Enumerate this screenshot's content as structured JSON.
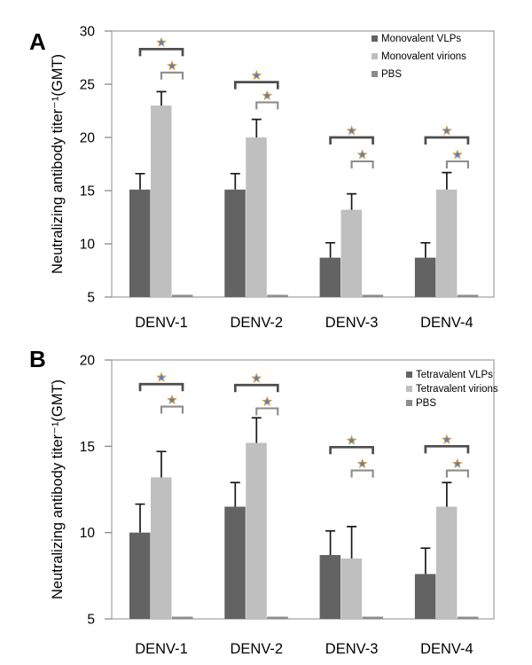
{
  "figure": {
    "panels": [
      {
        "label": "A",
        "ylabel": "Neutralizing antibody titer⁻¹(GMT)"
      },
      {
        "label": "B",
        "ylabel": "Neutralizing antibody titer⁻¹(GMT)"
      }
    ]
  },
  "chart_data": [
    {
      "type": "bar",
      "panel_label": "A",
      "title": "",
      "categories": [
        "DENV-1",
        "DENV-2",
        "DENV-3",
        "DENV-4"
      ],
      "series": [
        {
          "name": "Monovalent VLPs",
          "color": "#636363",
          "values": [
            15.1,
            15.1,
            8.7,
            8.7
          ],
          "errors_up": [
            1.5,
            1.5,
            1.4,
            1.4
          ]
        },
        {
          "name": "Monovalent virions",
          "color": "#bfbfbf",
          "values": [
            23.0,
            20.0,
            13.2,
            15.1
          ],
          "errors_up": [
            1.3,
            1.7,
            1.5,
            1.6
          ]
        },
        {
          "name": "PBS",
          "color": "#8c8c8c",
          "values": [
            5,
            5,
            5,
            5
          ],
          "errors_up": [
            0,
            0,
            0,
            0
          ]
        }
      ],
      "ylabel": "Neutralizing antibody titer⁻¹(GMT)",
      "xlabel": "",
      "ylim": [
        5,
        30
      ],
      "yticks": [
        5,
        10,
        15,
        20,
        25,
        30
      ],
      "grid": false,
      "legend_position": "top-right",
      "significance_brackets": [
        {
          "category": 0,
          "from_series": 0,
          "to_series": 2,
          "y": 28.3,
          "label": "*"
        },
        {
          "category": 0,
          "from_series": 1,
          "to_series": 2,
          "y": 26.1,
          "label": "*"
        },
        {
          "category": 1,
          "from_series": 0,
          "to_series": 2,
          "y": 25.2,
          "label": "*"
        },
        {
          "category": 1,
          "from_series": 1,
          "to_series": 2,
          "y": 23.3,
          "label": "*"
        },
        {
          "category": 2,
          "from_series": 0,
          "to_series": 2,
          "y": 20.0,
          "label": "*"
        },
        {
          "category": 2,
          "from_series": 1,
          "to_series": 2,
          "y": 17.75,
          "label": "*"
        },
        {
          "category": 3,
          "from_series": 0,
          "to_series": 2,
          "y": 20.0,
          "label": "*"
        },
        {
          "category": 3,
          "from_series": 1,
          "to_series": 2,
          "y": 17.75,
          "label": "*"
        }
      ]
    },
    {
      "type": "bar",
      "panel_label": "B",
      "title": "",
      "categories": [
        "DENV-1",
        "DENV-2",
        "DENV-3",
        "DENV-4"
      ],
      "series": [
        {
          "name": "Tetravalent VLPs",
          "color": "#636363",
          "values": [
            10.0,
            11.5,
            8.7,
            7.6
          ],
          "errors_up": [
            1.65,
            1.4,
            1.4,
            1.5
          ]
        },
        {
          "name": "Tetravalent virions",
          "color": "#bfbfbf",
          "values": [
            13.2,
            15.2,
            8.5,
            11.5
          ],
          "errors_up": [
            1.5,
            1.45,
            1.85,
            1.4
          ]
        },
        {
          "name": "PBS",
          "color": "#8c8c8c",
          "values": [
            5,
            5,
            5,
            5
          ],
          "errors_up": [
            0,
            0,
            0,
            0
          ]
        }
      ],
      "ylabel": "Neutralizing antibody titer⁻¹(GMT)",
      "xlabel": "",
      "ylim": [
        5,
        20
      ],
      "yticks": [
        5,
        10,
        15,
        20
      ],
      "grid": false,
      "legend_position": "top-right",
      "significance_brackets": [
        {
          "category": 0,
          "from_series": 0,
          "to_series": 2,
          "y": 18.6,
          "label": "*"
        },
        {
          "category": 0,
          "from_series": 1,
          "to_series": 2,
          "y": 17.3,
          "label": "*"
        },
        {
          "category": 1,
          "from_series": 0,
          "to_series": 2,
          "y": 18.55,
          "label": "*"
        },
        {
          "category": 1,
          "from_series": 1,
          "to_series": 2,
          "y": 17.2,
          "label": "*"
        },
        {
          "category": 2,
          "from_series": 0,
          "to_series": 2,
          "y": 14.95,
          "label": "*"
        },
        {
          "category": 2,
          "from_series": 1,
          "to_series": 2,
          "y": 13.6,
          "label": "*"
        },
        {
          "category": 3,
          "from_series": 0,
          "to_series": 2,
          "y": 15.0,
          "label": "*"
        },
        {
          "category": 3,
          "from_series": 1,
          "to_series": 2,
          "y": 13.6,
          "label": "*"
        }
      ]
    }
  ],
  "style": {
    "star_fill": "#4f81bd",
    "star_edge": "#d9a35a",
    "bracket_outer_color": "#4d4d4d",
    "bracket_inner_color": "#8c8c8c",
    "frame_color": "#a6a6a6",
    "axis_color": "#8c8c8c",
    "error_bar_color": "#1a1a1a",
    "text_color": "#000000"
  }
}
